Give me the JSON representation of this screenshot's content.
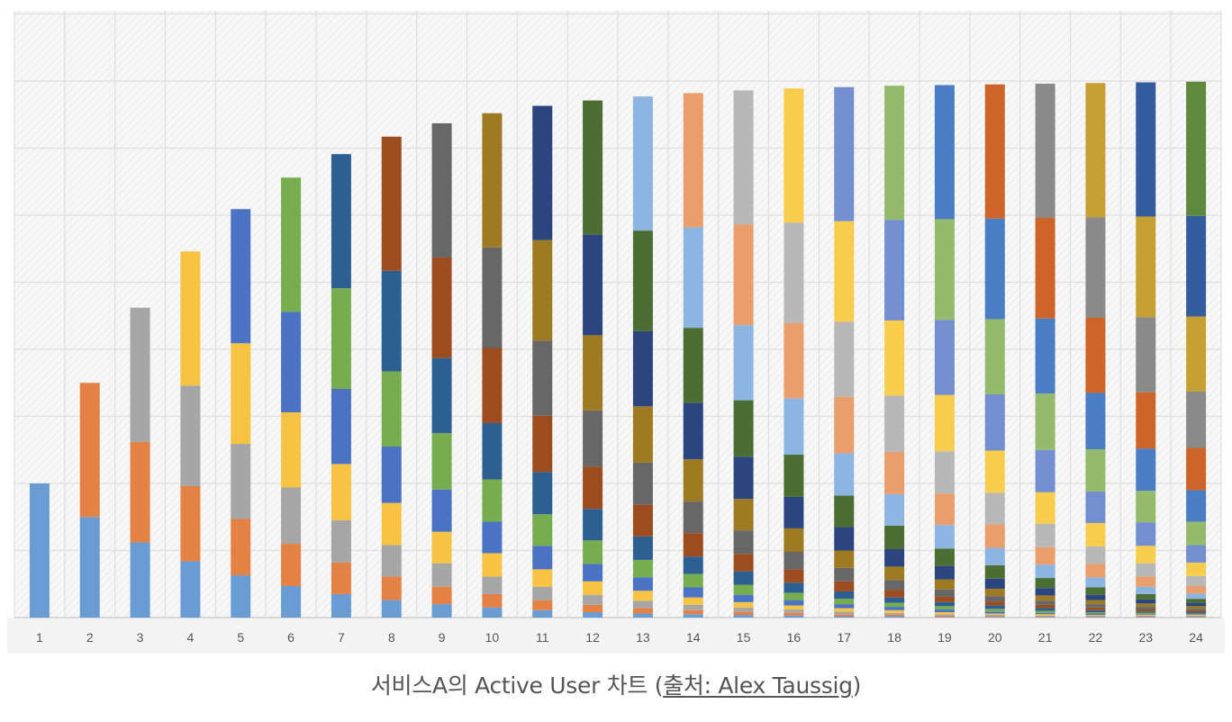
{
  "caption": {
    "prefix": "서비스A의 Active User 차트 (",
    "link_text": "출처: Alex Taussig",
    "suffix": ")"
  },
  "chart_data": {
    "type": "bar",
    "stacked": true,
    "title": "",
    "xlabel": "",
    "ylabel": "",
    "categories": [
      "1",
      "2",
      "3",
      "4",
      "5",
      "6",
      "7",
      "8",
      "9",
      "10",
      "11",
      "12",
      "13",
      "14",
      "15",
      "16",
      "17",
      "18",
      "19",
      "20",
      "21",
      "22",
      "23",
      "24"
    ],
    "y_tick_labels_shown": false,
    "grid": true,
    "ylim": [
      0,
      9
    ],
    "cohort_colors": [
      "#699cd2",
      "#e38244",
      "#a6a6a6",
      "#f7c342",
      "#4a73c6",
      "#76ad4e",
      "#2d5f93",
      "#9c4c1f",
      "#676767",
      "#9e7a23",
      "#2b4580",
      "#4c6e32",
      "#8db5e2",
      "#ea9e6b",
      "#b8b8b8",
      "#f8cd4d",
      "#738fcf",
      "#93bb6b",
      "#4a7ec4",
      "#cd6428",
      "#8a8a8a",
      "#c7a034",
      "#345da0",
      "#5f8a3e"
    ],
    "series_values_note": "series[i].values[m] = remaining active users of the cohort acquired in month i+1, observed in month m+1; null before acquisition",
    "series": [
      {
        "values": [
          2.0,
          1.5,
          1.12,
          0.84,
          0.63,
          0.47,
          0.35,
          0.26,
          0.2,
          0.15,
          0.11,
          0.08,
          0.06,
          0.05,
          0.04,
          0.03,
          0.02,
          0.02,
          0.01,
          0.01,
          0.01,
          0.01,
          0.01,
          0.01
        ]
      },
      {
        "values": [
          null,
          2.0,
          1.5,
          1.12,
          0.84,
          0.63,
          0.47,
          0.35,
          0.26,
          0.2,
          0.15,
          0.11,
          0.08,
          0.06,
          0.05,
          0.04,
          0.03,
          0.02,
          0.02,
          0.01,
          0.01,
          0.01,
          0.01,
          0.01
        ]
      },
      {
        "values": [
          null,
          null,
          2.0,
          1.5,
          1.12,
          0.84,
          0.63,
          0.47,
          0.35,
          0.26,
          0.2,
          0.15,
          0.11,
          0.08,
          0.06,
          0.05,
          0.04,
          0.03,
          0.02,
          0.02,
          0.01,
          0.01,
          0.01,
          0.01
        ]
      },
      {
        "values": [
          null,
          null,
          null,
          2.0,
          1.5,
          1.12,
          0.84,
          0.63,
          0.47,
          0.35,
          0.26,
          0.2,
          0.15,
          0.11,
          0.08,
          0.06,
          0.05,
          0.04,
          0.03,
          0.02,
          0.02,
          0.01,
          0.01,
          0.01
        ]
      },
      {
        "values": [
          null,
          null,
          null,
          null,
          2.0,
          1.5,
          1.12,
          0.84,
          0.63,
          0.47,
          0.35,
          0.26,
          0.2,
          0.15,
          0.11,
          0.08,
          0.06,
          0.05,
          0.04,
          0.03,
          0.02,
          0.02,
          0.01,
          0.01
        ]
      },
      {
        "values": [
          null,
          null,
          null,
          null,
          null,
          2.0,
          1.5,
          1.12,
          0.84,
          0.63,
          0.47,
          0.35,
          0.26,
          0.2,
          0.15,
          0.11,
          0.08,
          0.06,
          0.05,
          0.04,
          0.03,
          0.02,
          0.02,
          0.01
        ]
      },
      {
        "values": [
          null,
          null,
          null,
          null,
          null,
          null,
          2.0,
          1.5,
          1.12,
          0.84,
          0.63,
          0.47,
          0.35,
          0.26,
          0.2,
          0.15,
          0.11,
          0.08,
          0.06,
          0.05,
          0.04,
          0.03,
          0.02,
          0.02
        ]
      },
      {
        "values": [
          null,
          null,
          null,
          null,
          null,
          null,
          null,
          2.0,
          1.5,
          1.12,
          0.84,
          0.63,
          0.47,
          0.35,
          0.26,
          0.2,
          0.15,
          0.11,
          0.08,
          0.06,
          0.05,
          0.04,
          0.03,
          0.02
        ]
      },
      {
        "values": [
          null,
          null,
          null,
          null,
          null,
          null,
          null,
          null,
          2.0,
          1.5,
          1.12,
          0.84,
          0.63,
          0.47,
          0.35,
          0.26,
          0.2,
          0.15,
          0.11,
          0.08,
          0.06,
          0.05,
          0.04,
          0.03
        ]
      },
      {
        "values": [
          null,
          null,
          null,
          null,
          null,
          null,
          null,
          null,
          null,
          2.0,
          1.5,
          1.12,
          0.84,
          0.63,
          0.47,
          0.35,
          0.26,
          0.2,
          0.15,
          0.11,
          0.08,
          0.06,
          0.05,
          0.04
        ]
      },
      {
        "values": [
          null,
          null,
          null,
          null,
          null,
          null,
          null,
          null,
          null,
          null,
          2.0,
          1.5,
          1.12,
          0.84,
          0.63,
          0.47,
          0.35,
          0.26,
          0.2,
          0.15,
          0.11,
          0.08,
          0.06,
          0.05
        ]
      },
      {
        "values": [
          null,
          null,
          null,
          null,
          null,
          null,
          null,
          null,
          null,
          null,
          null,
          2.0,
          1.5,
          1.12,
          0.84,
          0.63,
          0.47,
          0.35,
          0.26,
          0.2,
          0.15,
          0.11,
          0.08,
          0.06
        ]
      },
      {
        "values": [
          null,
          null,
          null,
          null,
          null,
          null,
          null,
          null,
          null,
          null,
          null,
          null,
          2.0,
          1.5,
          1.12,
          0.84,
          0.63,
          0.47,
          0.35,
          0.26,
          0.2,
          0.15,
          0.11,
          0.08
        ]
      },
      {
        "values": [
          null,
          null,
          null,
          null,
          null,
          null,
          null,
          null,
          null,
          null,
          null,
          null,
          null,
          2.0,
          1.5,
          1.12,
          0.84,
          0.63,
          0.47,
          0.35,
          0.26,
          0.2,
          0.15,
          0.11
        ]
      },
      {
        "values": [
          null,
          null,
          null,
          null,
          null,
          null,
          null,
          null,
          null,
          null,
          null,
          null,
          null,
          null,
          2.0,
          1.5,
          1.12,
          0.84,
          0.63,
          0.47,
          0.35,
          0.26,
          0.2,
          0.15
        ]
      },
      {
        "values": [
          null,
          null,
          null,
          null,
          null,
          null,
          null,
          null,
          null,
          null,
          null,
          null,
          null,
          null,
          null,
          2.0,
          1.5,
          1.12,
          0.84,
          0.63,
          0.47,
          0.35,
          0.26,
          0.2
        ]
      },
      {
        "values": [
          null,
          null,
          null,
          null,
          null,
          null,
          null,
          null,
          null,
          null,
          null,
          null,
          null,
          null,
          null,
          null,
          2.0,
          1.5,
          1.12,
          0.84,
          0.63,
          0.47,
          0.35,
          0.26
        ]
      },
      {
        "values": [
          null,
          null,
          null,
          null,
          null,
          null,
          null,
          null,
          null,
          null,
          null,
          null,
          null,
          null,
          null,
          null,
          null,
          2.0,
          1.5,
          1.12,
          0.84,
          0.63,
          0.47,
          0.35
        ]
      },
      {
        "values": [
          null,
          null,
          null,
          null,
          null,
          null,
          null,
          null,
          null,
          null,
          null,
          null,
          null,
          null,
          null,
          null,
          null,
          null,
          2.0,
          1.5,
          1.12,
          0.84,
          0.63,
          0.47
        ]
      },
      {
        "values": [
          null,
          null,
          null,
          null,
          null,
          null,
          null,
          null,
          null,
          null,
          null,
          null,
          null,
          null,
          null,
          null,
          null,
          null,
          null,
          2.0,
          1.5,
          1.12,
          0.84,
          0.63
        ]
      },
      {
        "values": [
          null,
          null,
          null,
          null,
          null,
          null,
          null,
          null,
          null,
          null,
          null,
          null,
          null,
          null,
          null,
          null,
          null,
          null,
          null,
          null,
          2.0,
          1.5,
          1.12,
          0.84
        ]
      },
      {
        "values": [
          null,
          null,
          null,
          null,
          null,
          null,
          null,
          null,
          null,
          null,
          null,
          null,
          null,
          null,
          null,
          null,
          null,
          null,
          null,
          null,
          null,
          2.0,
          1.5,
          1.12
        ]
      },
      {
        "values": [
          null,
          null,
          null,
          null,
          null,
          null,
          null,
          null,
          null,
          null,
          null,
          null,
          null,
          null,
          null,
          null,
          null,
          null,
          null,
          null,
          null,
          null,
          2.0,
          1.5
        ]
      },
      {
        "values": [
          null,
          null,
          null,
          null,
          null,
          null,
          null,
          null,
          null,
          null,
          null,
          null,
          null,
          null,
          null,
          null,
          null,
          null,
          null,
          null,
          null,
          null,
          null,
          2.0
        ]
      }
    ]
  }
}
